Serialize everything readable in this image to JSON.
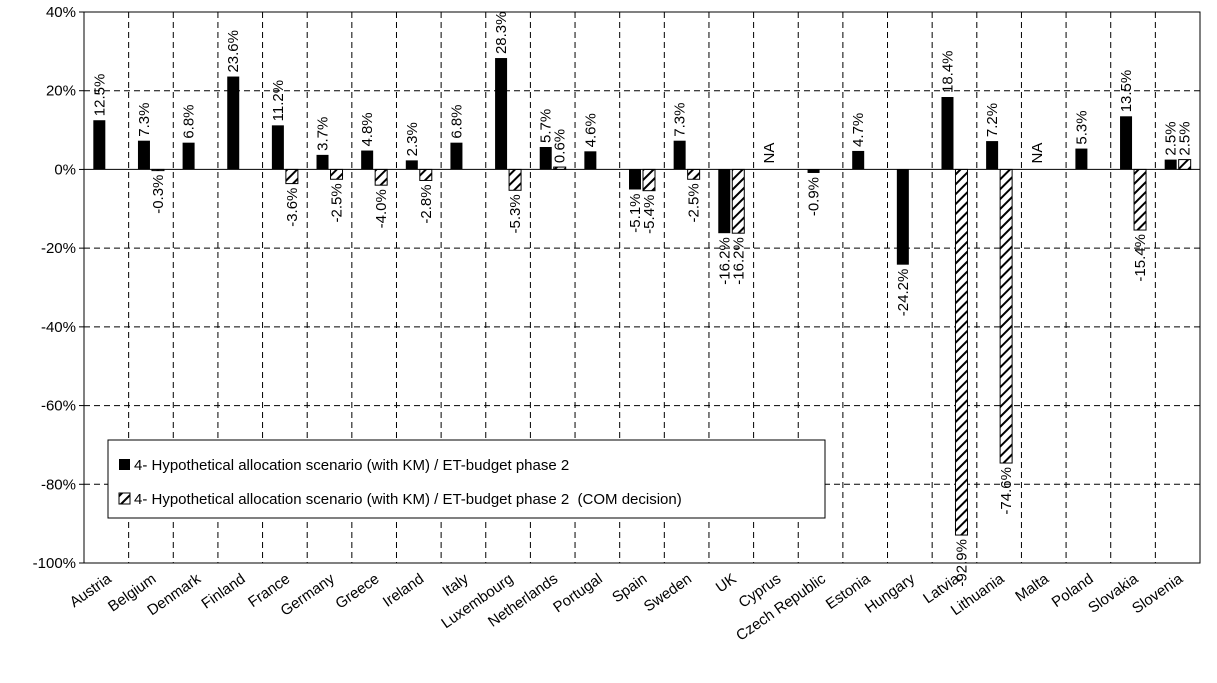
{
  "chart_data": {
    "type": "bar",
    "categories": [
      "Austria",
      "Belgium",
      "Denmark",
      "Finland",
      "France",
      "Germany",
      "Greece",
      "Ireland",
      "Italy",
      "Luxembourg",
      "Netherlands",
      "Portugal",
      "Spain",
      "Sweden",
      "UK",
      "Cyprus",
      "Czech Republic",
      "Estonia",
      "Hungary",
      "Latvia",
      "Lithuania",
      "Malta",
      "Poland",
      "Slovakia",
      "Slovenia"
    ],
    "series": [
      {
        "name": "4- Hypothetical allocation scenario (with KM)  / ET-budget phase 2",
        "fill": "solid",
        "color": "#000000",
        "values": [
          12.5,
          7.3,
          6.8,
          23.6,
          11.2,
          3.7,
          4.8,
          2.3,
          6.8,
          28.3,
          5.7,
          4.6,
          -5.1,
          7.3,
          -16.2,
          null,
          -0.9,
          4.7,
          -24.2,
          18.4,
          7.2,
          null,
          5.3,
          13.5,
          2.5
        ],
        "labels": [
          "12.5%",
          "7.3%",
          "6.8%",
          "23.6%",
          "11.2%",
          "3.7%",
          "4.8%",
          "2.3%",
          "6.8%",
          "28.3%",
          "5.7%",
          "4.6%",
          "-5.1%",
          "7.3%",
          "-16.2%",
          "NA",
          "-0.9%",
          "4.7%",
          "-24.2%",
          "18.4%",
          "7.2%",
          "NA",
          "5.3%",
          "13.5%",
          "2.5%"
        ]
      },
      {
        "name": "4- Hypothetical allocation scenario (with KM) / ET-budget phase 2  (COM decision)",
        "fill": "hatched",
        "color": "#000000",
        "values": [
          null,
          -0.3,
          null,
          null,
          -3.6,
          -2.5,
          -4.0,
          -2.8,
          null,
          -5.3,
          0.6,
          null,
          -5.4,
          -2.5,
          -16.2,
          null,
          null,
          null,
          null,
          -92.9,
          -74.6,
          null,
          null,
          -15.4,
          2.5
        ],
        "labels": [
          null,
          "-0.3%",
          null,
          null,
          "-3.6%",
          "-2.5%",
          "-4.0%",
          "-2.8%",
          null,
          "-5.3%",
          "0.6%",
          null,
          "-5.4%",
          "-2.5%",
          "-16.2%",
          null,
          null,
          null,
          null,
          "-92.9%",
          "-74.6%",
          null,
          null,
          "-15.4%",
          "2.5%"
        ]
      }
    ],
    "ylim": [
      -100,
      40
    ],
    "yticks": [
      -100,
      -80,
      -60,
      -40,
      -20,
      0,
      20,
      40
    ],
    "ytick_labels": [
      "-100%",
      "-80%",
      "-60%",
      "-40%",
      "-20%",
      "0%",
      "20%",
      "40%"
    ],
    "grid": true,
    "legend_position": "bottom-left inside plot",
    "title": "",
    "xlabel": "",
    "ylabel": ""
  }
}
